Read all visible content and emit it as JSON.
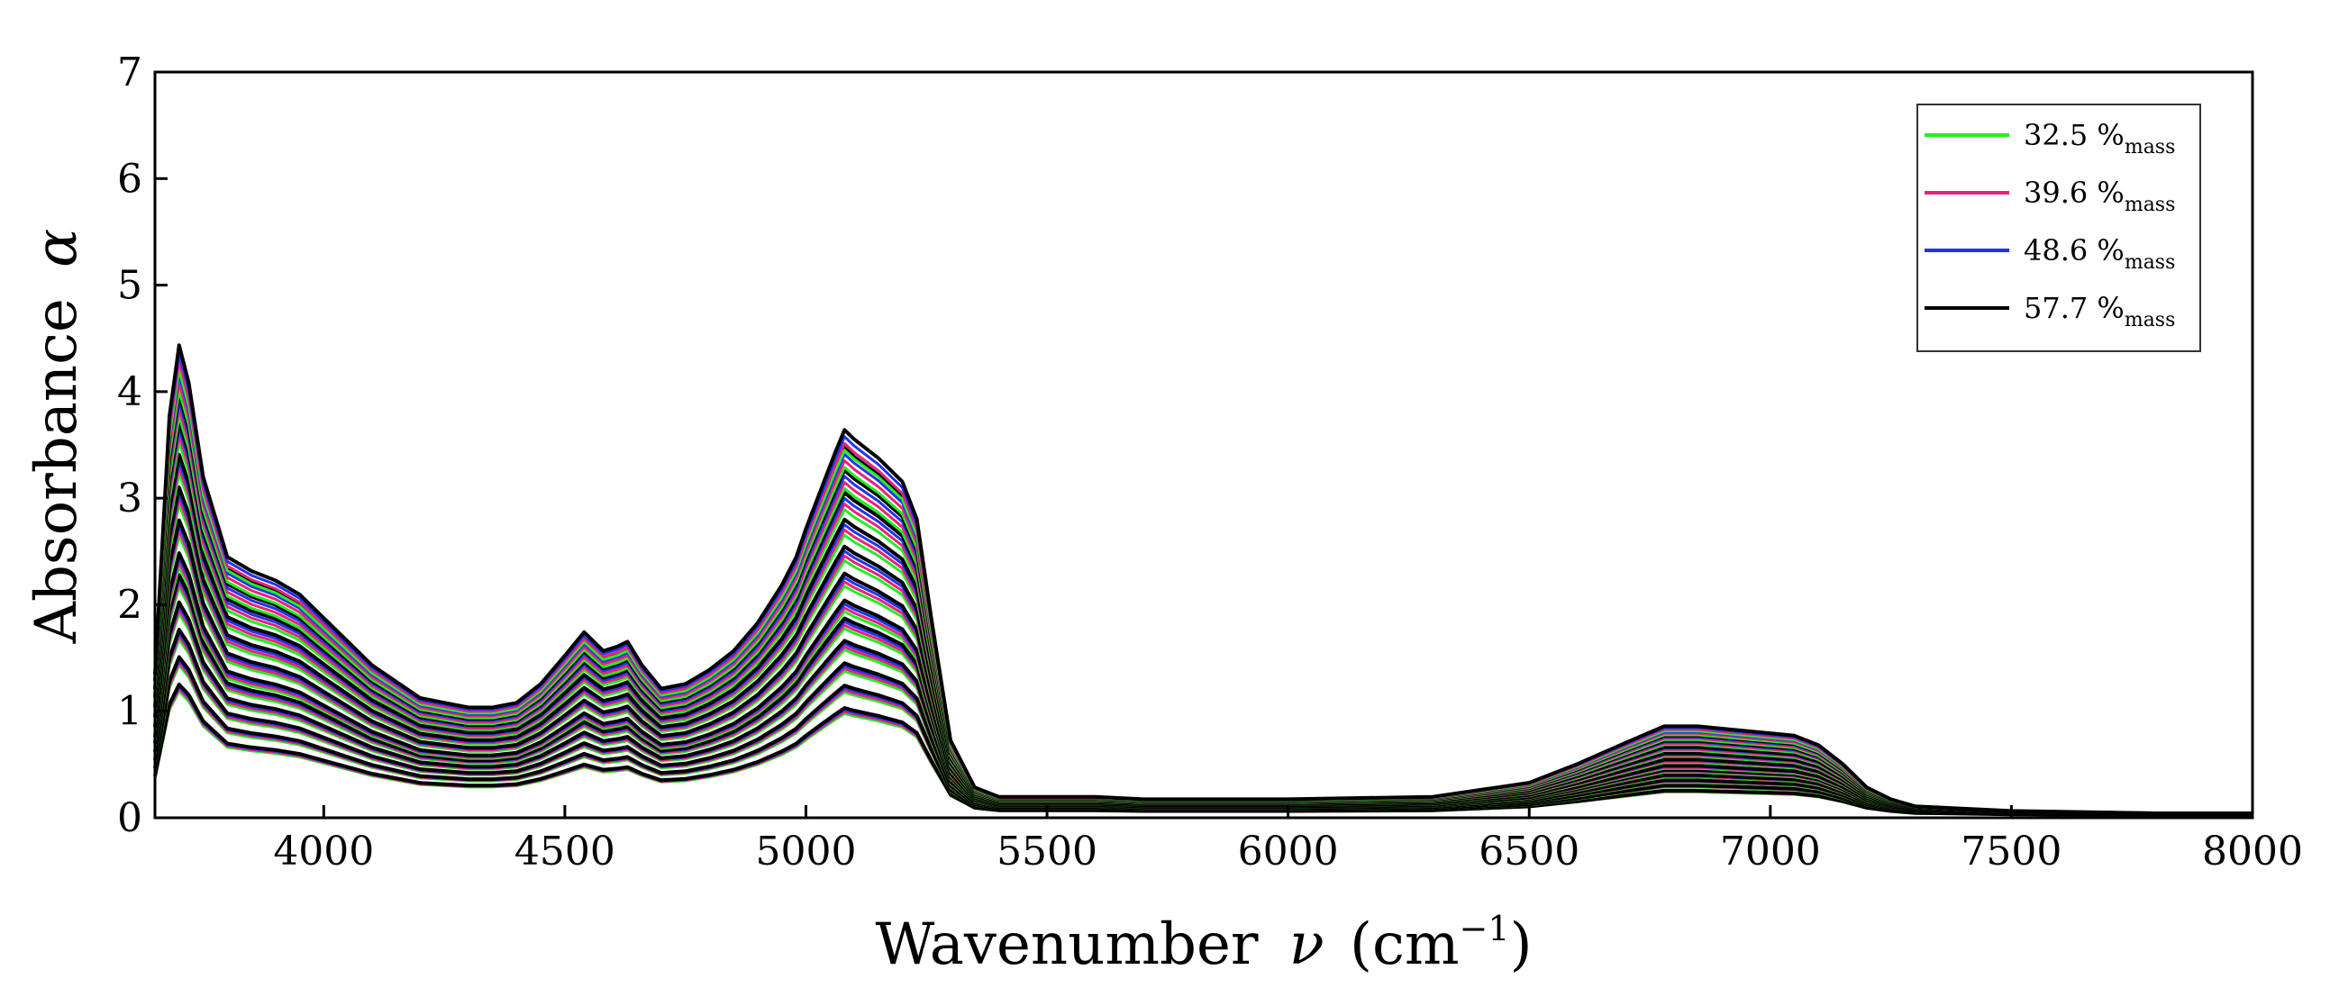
{
  "chart_data": {
    "type": "line",
    "title": "",
    "xlabel": {
      "text": "Wavenumber",
      "symbol": "ν",
      "unit_open": "(cm",
      "unit_exp": "−1",
      "unit_close": ")"
    },
    "ylabel": {
      "text": "Absorbance",
      "symbol": "α"
    },
    "xlim": [
      3650,
      8000
    ],
    "ylim": [
      0,
      7
    ],
    "xticks": [
      4000,
      4500,
      5000,
      5500,
      6000,
      6500,
      7000,
      7500,
      8000
    ],
    "yticks": [
      0,
      1,
      2,
      3,
      4,
      5,
      6,
      7
    ],
    "xtick_labels": [
      "4000",
      "4500",
      "5000",
      "5500",
      "6000",
      "6500",
      "7000",
      "7500",
      "8000"
    ],
    "ytick_labels": [
      "0",
      "1",
      "2",
      "3",
      "4",
      "5",
      "6",
      "7"
    ],
    "grid": false,
    "legend_position": "top-right",
    "legend": [
      {
        "label": "32.5 %",
        "sub": "mass",
        "color": "#22ee22"
      },
      {
        "label": "39.6 %",
        "sub": "mass",
        "color": "#e8227a"
      },
      {
        "label": "48.6 %",
        "sub": "mass",
        "color": "#2233ee"
      },
      {
        "label": "57.7 %",
        "sub": "mass",
        "color": "#000000"
      }
    ],
    "series_template": {
      "x": [
        3650,
        3680,
        3700,
        3720,
        3750,
        3800,
        3850,
        3900,
        3950,
        4000,
        4100,
        4200,
        4300,
        4350,
        4400,
        4450,
        4500,
        4540,
        4580,
        4610,
        4630,
        4660,
        4700,
        4750,
        4800,
        4850,
        4900,
        4950,
        4980,
        5000,
        5030,
        5060,
        5080,
        5100,
        5150,
        5200,
        5230,
        5260,
        5300,
        5350,
        5400,
        5500,
        5600,
        5700,
        6000,
        6300,
        6500,
        6600,
        6700,
        6780,
        6850,
        6950,
        7050,
        7100,
        7150,
        7200,
        7250,
        7300,
        7500,
        7800,
        8000
      ],
      "shape": [
        0.3,
        0.85,
        1.0,
        0.92,
        0.72,
        0.55,
        0.52,
        0.5,
        0.47,
        0.42,
        0.32,
        0.25,
        0.23,
        0.23,
        0.24,
        0.28,
        0.34,
        0.39,
        0.35,
        0.36,
        0.37,
        0.32,
        0.27,
        0.28,
        0.31,
        0.35,
        0.41,
        0.49,
        0.55,
        0.61,
        0.69,
        0.77,
        0.82,
        0.8,
        0.76,
        0.71,
        0.63,
        0.42,
        0.16,
        0.06,
        0.04,
        0.04,
        0.04,
        0.035,
        0.035,
        0.04,
        0.07,
        0.11,
        0.155,
        0.19,
        0.19,
        0.18,
        0.17,
        0.15,
        0.11,
        0.06,
        0.035,
        0.02,
        0.01,
        0.005,
        0.005
      ],
      "ir_peak_cap": 7,
      "baseline_offset": 0.02,
      "scales": [
        1.2,
        1.45,
        1.7,
        1.95,
        2.2,
        2.4,
        2.7,
        3.0,
        3.3,
        3.6,
        3.85,
        4.1,
        4.3
      ]
    }
  }
}
